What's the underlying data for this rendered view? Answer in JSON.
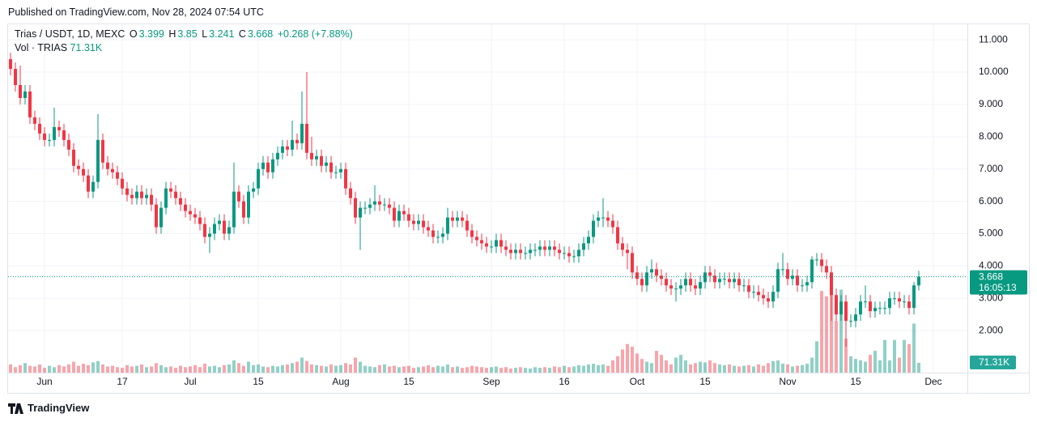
{
  "published": "Published on TradingView.com, Nov 28, 2024 07:54 UTC",
  "brand": "TradingView",
  "chart_data": {
    "type": "candlestick",
    "symbol": "Trias / USDT, 1D, MEXC",
    "ohlc_letters": [
      "O",
      "H",
      "L",
      "C"
    ],
    "change": "+0.268 (+7.88%)",
    "volume_title": "Vol · TRIAS",
    "volume_last_label": "71.31K",
    "countdown": "16:05:13",
    "up_color": "#089981",
    "down_color": "#f23645",
    "grid": true,
    "xlim": [
      -0.5,
      197
    ],
    "xticks": [
      {
        "value": 7,
        "label": "Jun"
      },
      {
        "value": 23,
        "label": "17"
      },
      {
        "value": 37,
        "label": "Jul"
      },
      {
        "value": 51,
        "label": "15"
      },
      {
        "value": 68,
        "label": "Aug"
      },
      {
        "value": 82,
        "label": "15"
      },
      {
        "value": 99,
        "label": "Sep"
      },
      {
        "value": 114,
        "label": "16"
      },
      {
        "value": 129,
        "label": "Oct"
      },
      {
        "value": 143,
        "label": "15"
      },
      {
        "value": 160,
        "label": "Nov"
      },
      {
        "value": 174,
        "label": "15"
      },
      {
        "value": 190,
        "label": "Dec"
      }
    ],
    "ylim": [
      0.7,
      11.48
    ],
    "yticks": [
      {
        "value": 2,
        "label": "2.000"
      },
      {
        "value": 3,
        "label": "3.000"
      },
      {
        "value": 4,
        "label": "4.000"
      },
      {
        "value": 5,
        "label": "5.000"
      },
      {
        "value": 6,
        "label": "6.000"
      },
      {
        "value": 7,
        "label": "7.000"
      },
      {
        "value": 8,
        "label": "8.000"
      },
      {
        "value": 9,
        "label": "9.000"
      },
      {
        "value": 10,
        "label": "10.000"
      },
      {
        "value": 11,
        "label": "11.000"
      }
    ],
    "volume_lim": [
      0,
      1000000
    ],
    "open": [
      10.4,
      10.1,
      9.6,
      9.2,
      9.4,
      8.6,
      8.4,
      8.1,
      7.9,
      7.9,
      8.3,
      8.2,
      7.9,
      7.6,
      7.1,
      7.0,
      6.8,
      6.3,
      6.6,
      7.9,
      7.2,
      7.0,
      6.9,
      6.7,
      6.4,
      6.2,
      6.1,
      6.3,
      6.1,
      6.2,
      5.9,
      5.2,
      5.8,
      6.4,
      6.3,
      6.1,
      5.9,
      5.7,
      5.6,
      5.5,
      5.3,
      4.9,
      5.0,
      5.3,
      5.4,
      5.0,
      5.2,
      6.3,
      6.0,
      5.5,
      6.3,
      6.4,
      7.0,
      7.2,
      6.9,
      7.3,
      7.5,
      7.7,
      7.6,
      7.9,
      7.8,
      8.4,
      7.5,
      7.3,
      7.4,
      7.1,
      7.2,
      6.9,
      6.9,
      7.0,
      6.4,
      6.1,
      5.5,
      5.8,
      5.8,
      5.9,
      6.0,
      5.9,
      5.9,
      5.8,
      5.4,
      5.7,
      5.6,
      5.4,
      5.3,
      5.4,
      5.2,
      5.1,
      4.9,
      4.9,
      5.0,
      5.5,
      5.4,
      5.5,
      5.4,
      5.1,
      4.9,
      4.8,
      4.7,
      4.6,
      4.6,
      4.8,
      4.6,
      4.5,
      4.4,
      4.5,
      4.4,
      4.4,
      4.5,
      4.5,
      4.6,
      4.5,
      4.6,
      4.5,
      4.4,
      4.4,
      4.3,
      4.3,
      4.5,
      4.7,
      4.9,
      5.4,
      5.5,
      5.5,
      5.4,
      5.2,
      4.7,
      4.5,
      4.4,
      3.8,
      3.6,
      3.4,
      3.8,
      3.9,
      3.7,
      3.6,
      3.4,
      3.3,
      3.3,
      3.4,
      3.6,
      3.4,
      3.3,
      3.5,
      3.8,
      3.7,
      3.5,
      3.6,
      3.6,
      3.5,
      3.6,
      3.4,
      3.4,
      3.2,
      3.2,
      3.1,
      3.0,
      2.9,
      3.2,
      3.9,
      3.9,
      3.6,
      3.7,
      3.4,
      3.4,
      3.5,
      4.2,
      4.2,
      4.0,
      3.8,
      3.1,
      2.5,
      2.9,
      2.3,
      2.3,
      2.5,
      2.9,
      2.9,
      2.6,
      2.7,
      2.7,
      2.7,
      3.0,
      3.0,
      2.9,
      2.9,
      2.7,
      3.399
    ],
    "high": [
      10.6,
      10.3,
      10.2,
      9.6,
      9.6,
      8.8,
      8.6,
      8.3,
      8.1,
      8.9,
      8.5,
      8.4,
      8.1,
      7.8,
      7.3,
      7.2,
      7.0,
      6.8,
      8.7,
      8.1,
      7.4,
      7.2,
      7.1,
      6.9,
      6.6,
      6.4,
      6.5,
      6.5,
      6.4,
      6.4,
      6.1,
      6.0,
      6.6,
      6.6,
      6.5,
      6.3,
      6.1,
      5.9,
      5.8,
      5.7,
      5.5,
      5.2,
      5.5,
      5.6,
      5.6,
      5.4,
      7.2,
      6.5,
      6.2,
      6.5,
      6.6,
      7.2,
      7.4,
      7.4,
      7.5,
      7.7,
      7.9,
      7.9,
      8.5,
      8.1,
      9.4,
      10.0,
      8.0,
      7.6,
      7.6,
      7.4,
      7.4,
      7.1,
      7.2,
      7.2,
      6.6,
      6.3,
      6.0,
      6.0,
      6.1,
      6.5,
      6.2,
      6.1,
      6.1,
      6.0,
      5.9,
      5.9,
      5.8,
      5.6,
      5.6,
      5.6,
      5.4,
      5.3,
      5.1,
      5.2,
      5.8,
      5.7,
      5.7,
      5.7,
      5.6,
      5.3,
      5.1,
      5.0,
      4.9,
      4.8,
      5.0,
      5.0,
      4.8,
      4.7,
      4.7,
      4.7,
      4.6,
      4.7,
      4.7,
      4.8,
      4.8,
      4.8,
      4.8,
      4.7,
      4.6,
      4.6,
      4.5,
      4.7,
      4.9,
      5.1,
      5.6,
      5.7,
      6.1,
      5.7,
      5.6,
      5.4,
      4.9,
      4.7,
      4.6,
      4.0,
      3.8,
      4.0,
      4.2,
      4.1,
      3.9,
      3.8,
      3.6,
      3.5,
      3.6,
      3.8,
      3.8,
      3.6,
      3.7,
      4.0,
      4.0,
      3.9,
      3.8,
      3.8,
      3.8,
      3.8,
      3.8,
      3.6,
      3.6,
      3.4,
      3.4,
      3.3,
      3.2,
      3.4,
      4.1,
      4.4,
      4.1,
      3.9,
      3.9,
      3.6,
      3.7,
      4.3,
      4.4,
      4.4,
      4.2,
      4.0,
      3.3,
      3.1,
      3.1,
      2.5,
      2.7,
      3.1,
      3.4,
      3.1,
      2.9,
      2.9,
      2.9,
      3.2,
      3.2,
      3.2,
      3.1,
      3.1,
      3.5,
      3.85
    ],
    "low": [
      9.9,
      9.4,
      9.0,
      9.0,
      8.4,
      8.2,
      7.9,
      7.7,
      7.7,
      7.7,
      8.0,
      7.7,
      7.4,
      6.9,
      6.8,
      6.6,
      6.1,
      6.1,
      6.4,
      7.0,
      6.8,
      6.7,
      6.5,
      6.2,
      6.0,
      5.9,
      5.9,
      5.9,
      5.9,
      5.7,
      5.0,
      5.0,
      5.6,
      6.1,
      5.9,
      5.7,
      5.5,
      5.4,
      5.3,
      5.1,
      4.7,
      4.4,
      4.8,
      5.1,
      4.8,
      4.8,
      5.0,
      5.8,
      5.3,
      5.3,
      6.1,
      6.2,
      6.8,
      6.7,
      6.7,
      7.1,
      7.3,
      7.4,
      7.4,
      7.6,
      7.6,
      7.3,
      7.1,
      7.1,
      6.9,
      6.9,
      6.7,
      6.7,
      6.7,
      6.2,
      5.9,
      5.3,
      4.5,
      5.6,
      5.6,
      5.7,
      5.7,
      5.7,
      5.6,
      5.2,
      5.2,
      5.4,
      5.2,
      5.1,
      5.1,
      5.0,
      4.9,
      4.7,
      4.7,
      4.7,
      4.8,
      5.2,
      5.2,
      5.2,
      4.9,
      4.7,
      4.6,
      4.5,
      4.4,
      4.4,
      4.4,
      4.4,
      4.3,
      4.2,
      4.2,
      4.2,
      4.2,
      4.2,
      4.3,
      4.3,
      4.3,
      4.3,
      4.3,
      4.2,
      4.2,
      4.1,
      4.1,
      4.1,
      4.3,
      4.5,
      4.7,
      5.2,
      5.2,
      5.2,
      5.0,
      4.5,
      4.3,
      3.9,
      3.6,
      3.4,
      3.2,
      3.2,
      3.6,
      3.5,
      3.4,
      3.2,
      3.1,
      2.9,
      3.1,
      3.2,
      3.2,
      3.1,
      3.1,
      3.3,
      3.5,
      3.3,
      3.3,
      3.4,
      3.3,
      3.3,
      3.2,
      3.2,
      3.0,
      3.0,
      2.9,
      2.8,
      2.7,
      2.7,
      3.0,
      3.7,
      3.4,
      3.4,
      3.2,
      3.2,
      3.2,
      3.3,
      4.0,
      3.8,
      3.6,
      2.3,
      2.3,
      2.3,
      1.5,
      2.1,
      2.1,
      2.3,
      2.7,
      2.4,
      2.4,
      2.5,
      2.5,
      2.5,
      2.8,
      2.7,
      2.7,
      2.5,
      2.5,
      3.241
    ],
    "close": [
      10.1,
      9.6,
      9.2,
      9.4,
      8.6,
      8.4,
      8.1,
      7.9,
      7.9,
      8.3,
      8.2,
      7.9,
      7.6,
      7.1,
      7.0,
      6.8,
      6.3,
      6.6,
      7.9,
      7.2,
      7.0,
      6.9,
      6.7,
      6.4,
      6.2,
      6.1,
      6.3,
      6.1,
      6.2,
      5.9,
      5.2,
      5.8,
      6.4,
      6.3,
      6.1,
      5.9,
      5.7,
      5.6,
      5.5,
      5.3,
      4.9,
      5.0,
      5.3,
      5.4,
      5.0,
      5.2,
      6.3,
      6.0,
      5.5,
      6.3,
      6.4,
      7.0,
      7.2,
      6.9,
      7.3,
      7.5,
      7.7,
      7.6,
      7.9,
      7.8,
      8.4,
      7.5,
      7.3,
      7.4,
      7.1,
      7.2,
      6.9,
      6.9,
      7.0,
      6.4,
      6.1,
      5.5,
      5.8,
      5.8,
      5.9,
      6.0,
      5.9,
      5.9,
      5.8,
      5.4,
      5.7,
      5.6,
      5.4,
      5.3,
      5.4,
      5.2,
      5.1,
      4.9,
      4.9,
      5.0,
      5.5,
      5.4,
      5.5,
      5.4,
      5.1,
      4.9,
      4.8,
      4.7,
      4.6,
      4.6,
      4.8,
      4.6,
      4.5,
      4.4,
      4.5,
      4.4,
      4.4,
      4.5,
      4.5,
      4.6,
      4.5,
      4.6,
      4.5,
      4.4,
      4.4,
      4.3,
      4.3,
      4.5,
      4.7,
      4.9,
      5.4,
      5.5,
      5.5,
      5.4,
      5.2,
      4.7,
      4.5,
      4.4,
      3.8,
      3.6,
      3.4,
      3.8,
      3.9,
      3.7,
      3.6,
      3.4,
      3.3,
      3.3,
      3.4,
      3.6,
      3.4,
      3.3,
      3.5,
      3.8,
      3.7,
      3.5,
      3.6,
      3.6,
      3.5,
      3.6,
      3.4,
      3.4,
      3.2,
      3.2,
      3.1,
      3.0,
      2.9,
      3.2,
      3.9,
      3.9,
      3.6,
      3.7,
      3.4,
      3.4,
      3.5,
      4.2,
      4.2,
      4.0,
      3.8,
      3.1,
      2.5,
      2.9,
      2.3,
      2.3,
      2.5,
      2.9,
      2.9,
      2.6,
      2.7,
      2.7,
      2.7,
      3.0,
      3.0,
      2.9,
      2.9,
      2.7,
      3.399,
      3.668
    ],
    "volume": [
      60000,
      40000,
      55000,
      70000,
      50000,
      45000,
      60000,
      35000,
      50000,
      40000,
      55000,
      45000,
      60000,
      80000,
      50000,
      65000,
      55000,
      75000,
      85000,
      60000,
      45000,
      50000,
      40000,
      35000,
      55000,
      45000,
      50000,
      60000,
      40000,
      45000,
      70000,
      55000,
      40000,
      45000,
      35000,
      50000,
      40000,
      45000,
      55000,
      40000,
      65000,
      45000,
      50000,
      40000,
      55000,
      60000,
      90000,
      70000,
      50000,
      80000,
      55000,
      60000,
      45000,
      40000,
      50000,
      45000,
      55000,
      60000,
      70000,
      80000,
      110000,
      85000,
      60000,
      55000,
      50000,
      45000,
      60000,
      50000,
      55000,
      70000,
      60000,
      110000,
      80000,
      50000,
      45000,
      40000,
      55000,
      60000,
      45000,
      50000,
      40000,
      45000,
      50000,
      35000,
      40000,
      45000,
      55000,
      40000,
      50000,
      45000,
      60000,
      40000,
      45000,
      35000,
      40000,
      50000,
      45000,
      40000,
      35000,
      40000,
      45000,
      35000,
      40000,
      30000,
      35000,
      40000,
      35000,
      30000,
      40000,
      35000,
      40000,
      35000,
      45000,
      40000,
      50000,
      40000,
      45000,
      55000,
      50000,
      60000,
      65000,
      55000,
      60000,
      50000,
      90000,
      120000,
      170000,
      210000,
      190000,
      140000,
      100000,
      80000,
      70000,
      160000,
      130000,
      90000,
      60000,
      110000,
      130000,
      90000,
      60000,
      70000,
      80000,
      75000,
      90000,
      70000,
      60000,
      55000,
      60000,
      50000,
      45000,
      50000,
      55000,
      45000,
      60000,
      50000,
      70000,
      85000,
      90000,
      65000,
      60000,
      45000,
      50000,
      55000,
      65000,
      110000,
      230000,
      600000,
      560000,
      640000,
      380000,
      610000,
      250000,
      120000,
      100000,
      90000,
      80000,
      130000,
      160000,
      90000,
      240000,
      90000,
      240000,
      110000,
      240000,
      210000,
      360000,
      71310
    ]
  }
}
